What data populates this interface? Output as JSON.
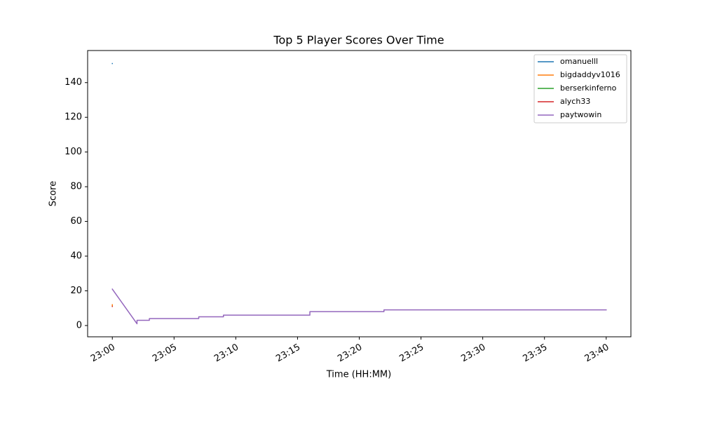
{
  "chart_data": {
    "type": "line",
    "title": "Top 5 Player Scores Over Time",
    "xlabel": "Time (HH:MM)",
    "ylabel": "Score",
    "xlim": [
      "22:58",
      "23:42"
    ],
    "xticks": [
      "23:00",
      "23:05",
      "23:10",
      "23:15",
      "23:20",
      "23:25",
      "23:30",
      "23:35",
      "23:40"
    ],
    "ylim": [
      -6.5,
      158.5
    ],
    "yticks": [
      0,
      20,
      40,
      60,
      80,
      100,
      120,
      140
    ],
    "legend": "upper right",
    "grid": false,
    "series": [
      {
        "name": "omanuelll",
        "color": "#1f77b4",
        "x": [
          "23:00",
          "23:00"
        ],
        "values": [
          151,
          151
        ]
      },
      {
        "name": "bigdaddyv1016",
        "color": "#ff7f0e",
        "x": [
          "23:00",
          "23:00"
        ],
        "values": [
          12,
          11
        ]
      },
      {
        "name": "berserkinferno",
        "color": "#2ca02c",
        "x": [
          "23:00",
          "23:00"
        ],
        "values": [
          11,
          11
        ]
      },
      {
        "name": "alych33",
        "color": "#d62728",
        "x": [
          "23:00",
          "23:00"
        ],
        "values": [
          11,
          11
        ]
      },
      {
        "name": "paytwowin",
        "color": "#9467bd",
        "x": [
          "23:00",
          "23:02",
          "23:02",
          "23:03",
          "23:03",
          "23:07",
          "23:07",
          "23:09",
          "23:09",
          "23:16",
          "23:16",
          "23:16",
          "23:22",
          "23:22",
          "23:40"
        ],
        "values": [
          21,
          1,
          3,
          3,
          4,
          4,
          5,
          5,
          6,
          6,
          7,
          8,
          8,
          9,
          9
        ]
      }
    ]
  }
}
